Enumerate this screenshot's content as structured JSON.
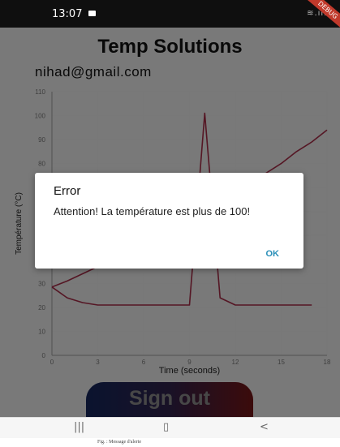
{
  "status_bar": {
    "time": "13:07",
    "signal": "≋.ııl",
    "debug_banner": "DEBUG"
  },
  "app": {
    "title": "Temp Solutions",
    "email": "nihad@gmail.com"
  },
  "chart_data": {
    "type": "line",
    "xlabel": "Time (seconds)",
    "ylabel": "Température (°C)",
    "xlim": [
      0,
      18
    ],
    "ylim": [
      0,
      110
    ],
    "x_ticks": [
      "0",
      "3",
      "6",
      "9",
      "12",
      "15",
      "18"
    ],
    "y_ticks": [
      "0",
      "10",
      "20",
      "30",
      "40",
      "50",
      "60",
      "70",
      "80",
      "90",
      "100",
      "110"
    ],
    "grid": true,
    "series": [
      {
        "x": [
          0,
          1,
          2,
          3,
          4,
          5,
          6,
          7,
          8,
          9,
          10,
          11,
          12,
          13,
          14,
          15,
          16,
          17,
          18
        ],
        "y": [
          28.5,
          31,
          34,
          37,
          40,
          43,
          46,
          49,
          52,
          56,
          60,
          64,
          68,
          72,
          76,
          80,
          85,
          89,
          94
        ]
      },
      {
        "x": [
          0,
          1,
          2,
          3,
          4,
          5,
          6,
          7,
          8,
          9,
          10,
          11,
          12,
          13,
          14,
          15,
          16,
          17
        ],
        "y": [
          28.5,
          24,
          22,
          21,
          21,
          21,
          21,
          21,
          21,
          21,
          101,
          24,
          21,
          21,
          21,
          21,
          21,
          21
        ]
      }
    ],
    "line_color": "#a02a44"
  },
  "dialog": {
    "title": "Error",
    "message": "Attention! La température est plus de 100!",
    "ok_label": "OK"
  },
  "signout": {
    "label": "Sign out"
  },
  "navbar": {
    "recents": "|||",
    "home": "▯",
    "back": "<"
  },
  "caption": "Fig. : Message d'alerte"
}
